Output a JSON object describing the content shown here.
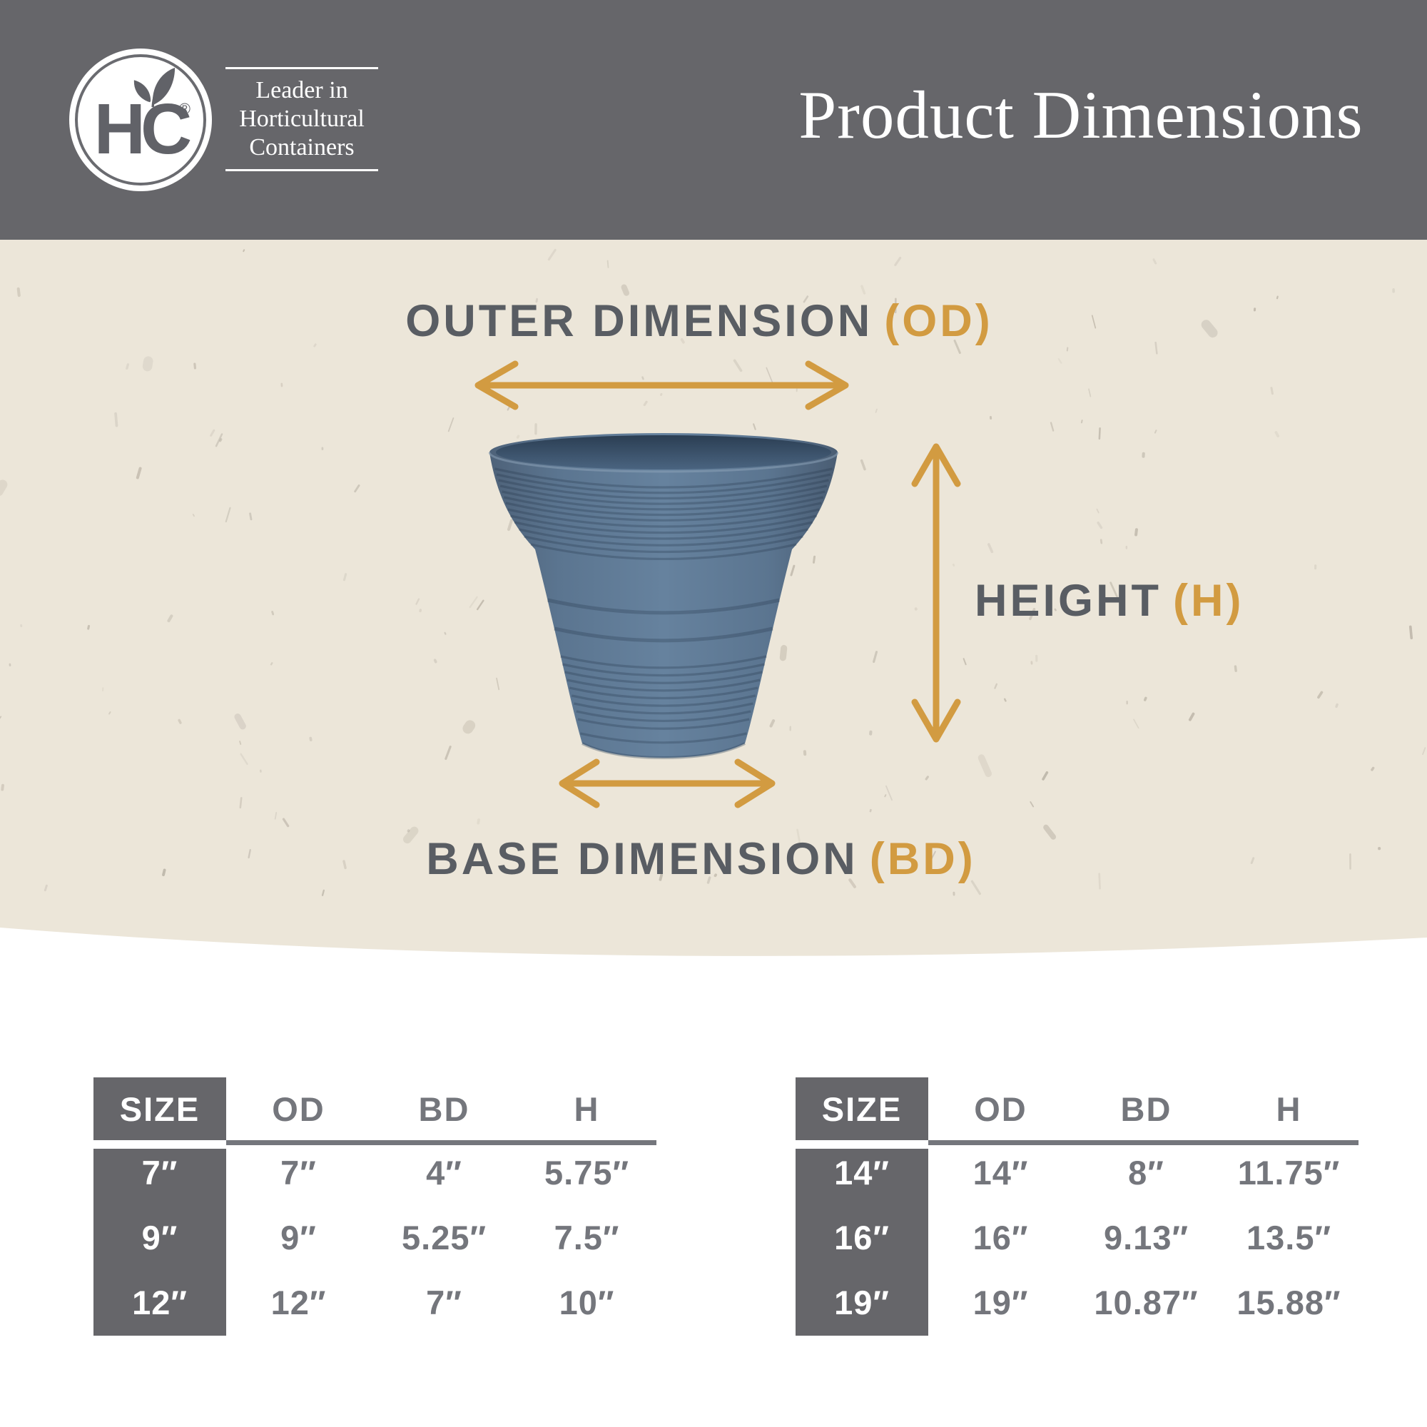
{
  "header": {
    "logo_monogram": "HC",
    "registered_mark": "®",
    "tagline_lines": [
      "Leader in",
      "Horticultural",
      "Containers"
    ],
    "title": "Product Dimensions"
  },
  "diagram": {
    "od_label": "OUTER DIMENSION",
    "od_abbr": "(OD)",
    "height_label": "HEIGHT",
    "height_abbr": "(H)",
    "bd_label": "BASE DIMENSION",
    "bd_abbr": "(BD)"
  },
  "tables": [
    {
      "columns": [
        "SIZE",
        "OD",
        "BD",
        "H"
      ],
      "rows": [
        [
          "7″",
          "7″",
          "4″",
          "5.75″"
        ],
        [
          "9″",
          "9″",
          "5.25″",
          "7.5″"
        ],
        [
          "12″",
          "12″",
          "7″",
          "10″"
        ]
      ]
    },
    {
      "columns": [
        "SIZE",
        "OD",
        "BD",
        "H"
      ],
      "rows": [
        [
          "14″",
          "14″",
          "8″",
          "11.75″"
        ],
        [
          "16″",
          "16″",
          "9.13″",
          "13.5″"
        ],
        [
          "19″",
          "19″",
          "10.87″",
          "15.88″"
        ]
      ]
    }
  ],
  "colors": {
    "header_bg": "#66666a",
    "beige_bg": "#ece6d9",
    "accent_orange": "#d29b41",
    "label_gray": "#595d63",
    "table_text": "#74767c",
    "band_gray": "#66666a",
    "pot_blue": "#5f7a96",
    "speckle": "#998f82"
  }
}
